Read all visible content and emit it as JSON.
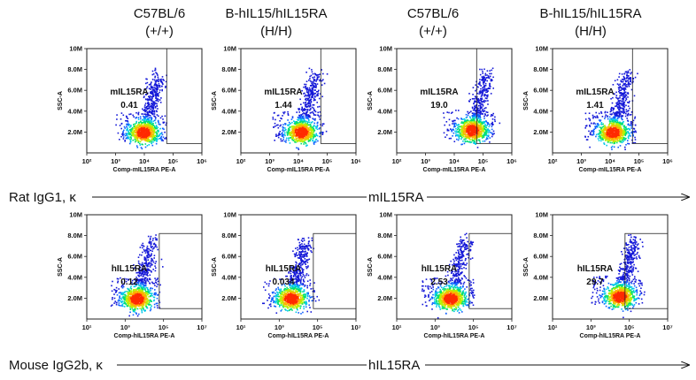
{
  "column_headers": [
    {
      "line1": "C57BL/6",
      "line2": "(+/+)"
    },
    {
      "line1": "B-hIL15/hIL15RA",
      "line2": "(H/H)"
    },
    {
      "line1": "C57BL/6",
      "line2": "(+/+)"
    },
    {
      "line1": "B-hIL15/hIL15RA",
      "line2": "(H/H)"
    }
  ],
  "rows": [
    {
      "isotype_label": "Rat IgG1, κ",
      "target_label": "mIL15RA"
    },
    {
      "isotype_label": "Mouse IgG2b, κ",
      "target_label": "hIL15RA"
    }
  ],
  "chart_data": [
    {
      "type": "scatter",
      "row": 0,
      "col": 0,
      "gate_name": "mIL15RA",
      "gate_percent": "0.41",
      "xlabel": "Comp-mIL15RA PE-A",
      "ylabel": "SSC-A",
      "x_scale": "log",
      "xlim": [
        100,
        1000000
      ],
      "x_tick_labels": [
        "10²",
        "10³",
        "10⁴",
        "10⁵",
        "10⁶"
      ],
      "ylim": [
        0,
        10000000
      ],
      "y_tick_labels": [
        "2.0M",
        "4.0M",
        "6.0M",
        "8.0M",
        "10M"
      ],
      "gate_x_range": [
        60000,
        1000000
      ],
      "gate_y_range": [
        900000,
        10000000
      ],
      "population_center": [
        9000,
        2000000
      ]
    },
    {
      "type": "scatter",
      "row": 0,
      "col": 1,
      "gate_name": "mIL15RA",
      "gate_percent": "1.44",
      "xlabel": "Comp-mIL15RA PE-A",
      "ylabel": "SSC-A",
      "x_scale": "log",
      "xlim": [
        100,
        1000000
      ],
      "x_tick_labels": [
        "10²",
        "10³",
        "10⁴",
        "10⁵",
        "10⁶"
      ],
      "ylim": [
        0,
        10000000
      ],
      "y_tick_labels": [
        "2.0M",
        "4.0M",
        "6.0M",
        "8.0M",
        "10M"
      ],
      "gate_x_range": [
        60000,
        1000000
      ],
      "gate_y_range": [
        900000,
        10000000
      ],
      "population_center": [
        12000,
        2000000
      ]
    },
    {
      "type": "scatter",
      "row": 0,
      "col": 2,
      "gate_name": "mIL15RA",
      "gate_percent": "19.0",
      "xlabel": "Comp-mIL15RA PE-A",
      "ylabel": "SSC-A",
      "x_scale": "log",
      "xlim": [
        100,
        1000000
      ],
      "x_tick_labels": [
        "10²",
        "10³",
        "10⁴",
        "10⁵",
        "10⁶"
      ],
      "ylim": [
        0,
        10000000
      ],
      "y_tick_labels": [
        "2.0M",
        "4.0M",
        "6.0M",
        "8.0M",
        "10M"
      ],
      "gate_x_range": [
        60000,
        1000000
      ],
      "gate_y_range": [
        900000,
        10000000
      ],
      "population_center": [
        40000,
        2200000
      ]
    },
    {
      "type": "scatter",
      "row": 0,
      "col": 3,
      "gate_name": "mIL15RA",
      "gate_percent": "1.41",
      "xlabel": "Comp-mIL15RA PE-A",
      "ylabel": "SSC-A",
      "x_scale": "log",
      "xlim": [
        100,
        1000000
      ],
      "x_tick_labels": [
        "10²",
        "10³",
        "10⁴",
        "10⁵",
        "10⁶"
      ],
      "ylim": [
        0,
        10000000
      ],
      "y_tick_labels": [
        "2.0M",
        "4.0M",
        "6.0M",
        "8.0M",
        "10M"
      ],
      "gate_x_range": [
        60000,
        1000000
      ],
      "gate_y_range": [
        900000,
        10000000
      ],
      "population_center": [
        12000,
        2000000
      ]
    },
    {
      "type": "scatter",
      "row": 1,
      "col": 0,
      "gate_name": "hIL15RA",
      "gate_percent": "0.12",
      "xlabel": "Comp-hIL15RA PE-A",
      "ylabel": "SSC-A",
      "x_scale": "log",
      "xlim": [
        10,
        10000000
      ],
      "x_tick_labels": [
        "10¹",
        "10³",
        "10⁵",
        "10⁷"
      ],
      "ylim": [
        0,
        10000000
      ],
      "y_tick_labels": [
        "2.0M",
        "4.0M",
        "6.0M",
        "8.0M",
        "10M"
      ],
      "gate_x_range": [
        60000,
        10000000
      ],
      "gate_y_range": [
        1000000,
        8200000
      ],
      "population_center": [
        4000,
        2000000
      ]
    },
    {
      "type": "scatter",
      "row": 1,
      "col": 1,
      "gate_name": "hIL15RA",
      "gate_percent": "0.034",
      "xlabel": "Comp-hIL15RA PE-A",
      "ylabel": "SSC-A",
      "x_scale": "log",
      "xlim": [
        10,
        10000000
      ],
      "x_tick_labels": [
        "10¹",
        "10³",
        "10⁵",
        "10⁷"
      ],
      "ylim": [
        0,
        10000000
      ],
      "y_tick_labels": [
        "2.0M",
        "4.0M",
        "6.0M",
        "8.0M",
        "10M"
      ],
      "gate_x_range": [
        60000,
        10000000
      ],
      "gate_y_range": [
        1000000,
        8200000
      ],
      "population_center": [
        4000,
        2000000
      ]
    },
    {
      "type": "scatter",
      "row": 1,
      "col": 2,
      "gate_name": "hIL15RA",
      "gate_percent": "2.53",
      "xlabel": "Comp-hIL15RA PE-A",
      "ylabel": "SSC-A",
      "x_scale": "log",
      "xlim": [
        10,
        10000000
      ],
      "x_tick_labels": [
        "10¹",
        "10³",
        "10⁵",
        "10⁷"
      ],
      "ylim": [
        0,
        10000000
      ],
      "y_tick_labels": [
        "2.0M",
        "4.0M",
        "6.0M",
        "8.0M",
        "10M"
      ],
      "gate_x_range": [
        60000,
        10000000
      ],
      "gate_y_range": [
        1000000,
        8200000
      ],
      "population_center": [
        6000,
        2000000
      ]
    },
    {
      "type": "scatter",
      "row": 1,
      "col": 3,
      "gate_name": "hIL15RA",
      "gate_percent": "29.7",
      "xlabel": "Comp-hIL15RA PE-A",
      "ylabel": "SSC-A",
      "x_scale": "log",
      "xlim": [
        10,
        10000000
      ],
      "x_tick_labels": [
        "10¹",
        "10³",
        "10⁵",
        "10⁷"
      ],
      "ylim": [
        0,
        10000000
      ],
      "y_tick_labels": [
        "2.0M",
        "4.0M",
        "6.0M",
        "8.0M",
        "10M"
      ],
      "gate_x_range": [
        60000,
        10000000
      ],
      "gate_y_range": [
        1000000,
        8200000
      ],
      "population_center": [
        30000,
        2200000
      ]
    }
  ]
}
